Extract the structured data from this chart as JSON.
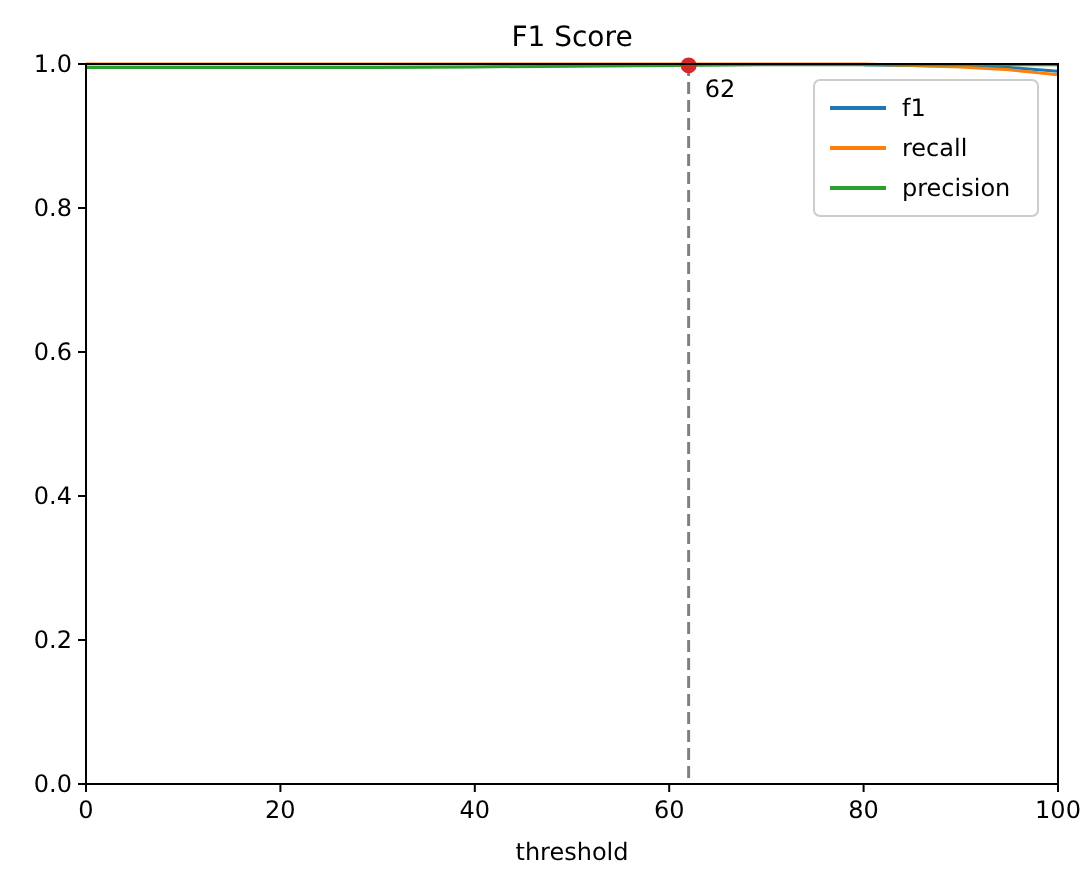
{
  "chart_data": {
    "type": "line",
    "title": "F1 Score",
    "xlabel": "threshold",
    "x": [
      0,
      10,
      20,
      30,
      40,
      50,
      60,
      70,
      80,
      90,
      95,
      100
    ],
    "series": [
      {
        "name": "f1",
        "color": "#1f77b4",
        "values": [
          null,
          null,
          null,
          null,
          null,
          null,
          null,
          null,
          0.999,
          0.997,
          0.995,
          0.99
        ]
      },
      {
        "name": "recall",
        "color": "#ff7f0e",
        "values": [
          1,
          1,
          1,
          1,
          1,
          1,
          1,
          1,
          1,
          0.996,
          0.992,
          0.985
        ]
      },
      {
        "name": "precision",
        "color": "#2ca02c",
        "values": [
          0.995,
          0.995,
          0.995,
          0.995,
          0.996,
          0.997,
          0.998,
          0.999,
          0.999,
          0.999,
          0.999,
          0.999
        ]
      },
      {
        "type": "scatter",
        "color": "#d62728",
        "x": [
          62
        ],
        "values": [
          0.998
        ]
      }
    ],
    "xlim": [
      0,
      100
    ],
    "xticks": [
      0,
      20,
      40,
      60,
      80,
      100
    ],
    "ylim": [
      0,
      1
    ],
    "yticks": [
      {
        "value": 0,
        "label": "0.0"
      },
      {
        "value": 0.2,
        "label": "0.2"
      },
      {
        "value": 0.4,
        "label": "0.4"
      },
      {
        "value": 0.6,
        "label": "0.6"
      },
      {
        "value": 0.8,
        "label": "0.8"
      },
      {
        "value": 1,
        "label": "1.0"
      }
    ],
    "ref_lines": [
      {
        "axis": "x",
        "value": 62,
        "color": "#808080",
        "line_style": "dashed"
      }
    ],
    "annotations": [
      {
        "text": "62",
        "x": 62,
        "y": 0.998
      }
    ],
    "legend": "top right",
    "grid": false
  }
}
